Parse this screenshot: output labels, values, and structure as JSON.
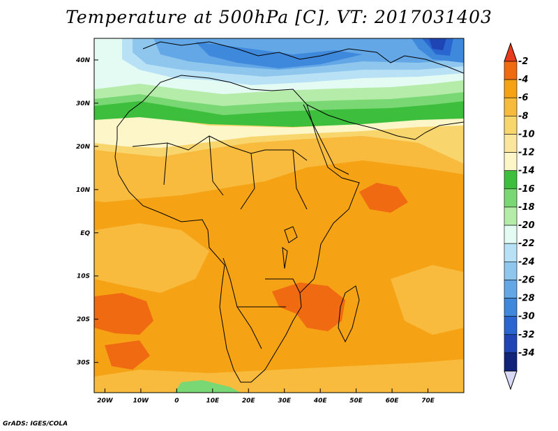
{
  "title": "Temperature at 500hPa [C], VT: 2017031403",
  "credit": "GrADS: IGES/COLA",
  "map": {
    "lon_range": [
      -23,
      80
    ],
    "lat_range": [
      -37,
      45
    ],
    "lat_ticks": [
      {
        "lat": 40,
        "label": "40N"
      },
      {
        "lat": 30,
        "label": "30N"
      },
      {
        "lat": 20,
        "label": "20N"
      },
      {
        "lat": 10,
        "label": "10N"
      },
      {
        "lat": 0,
        "label": "EQ"
      },
      {
        "lat": -10,
        "label": "10S"
      },
      {
        "lat": -20,
        "label": "20S"
      },
      {
        "lat": -30,
        "label": "30S"
      }
    ],
    "lon_ticks": [
      {
        "lon": -20,
        "label": "20W"
      },
      {
        "lon": -10,
        "label": "10W"
      },
      {
        "lon": 0,
        "label": "0"
      },
      {
        "lon": 10,
        "label": "10E"
      },
      {
        "lon": 20,
        "label": "20E"
      },
      {
        "lon": 30,
        "label": "30E"
      },
      {
        "lon": 40,
        "label": "40E"
      },
      {
        "lon": 50,
        "label": "50E"
      },
      {
        "lon": 60,
        "label": "60E"
      },
      {
        "lon": 70,
        "label": "70E"
      }
    ]
  },
  "colorbar": {
    "levels": [
      "-2",
      "-4",
      "-6",
      "-8",
      "-10",
      "-12",
      "-14",
      "-16",
      "-18",
      "-20",
      "-22",
      "-24",
      "-26",
      "-28",
      "-30",
      "-32",
      "-34"
    ],
    "colors": [
      "#e83d1c",
      "#f06a12",
      "#f5a314",
      "#f8bb3e",
      "#f9d56e",
      "#fbe79b",
      "#fdf6c8",
      "#3dbf3d",
      "#7ad874",
      "#b6ecaa",
      "#e4fbf4",
      "#b8e1f6",
      "#8ec6ee",
      "#63a7e6",
      "#3f89dc",
      "#2a66cf",
      "#1f45b4",
      "#12237a",
      "#d9d9f5"
    ]
  }
}
